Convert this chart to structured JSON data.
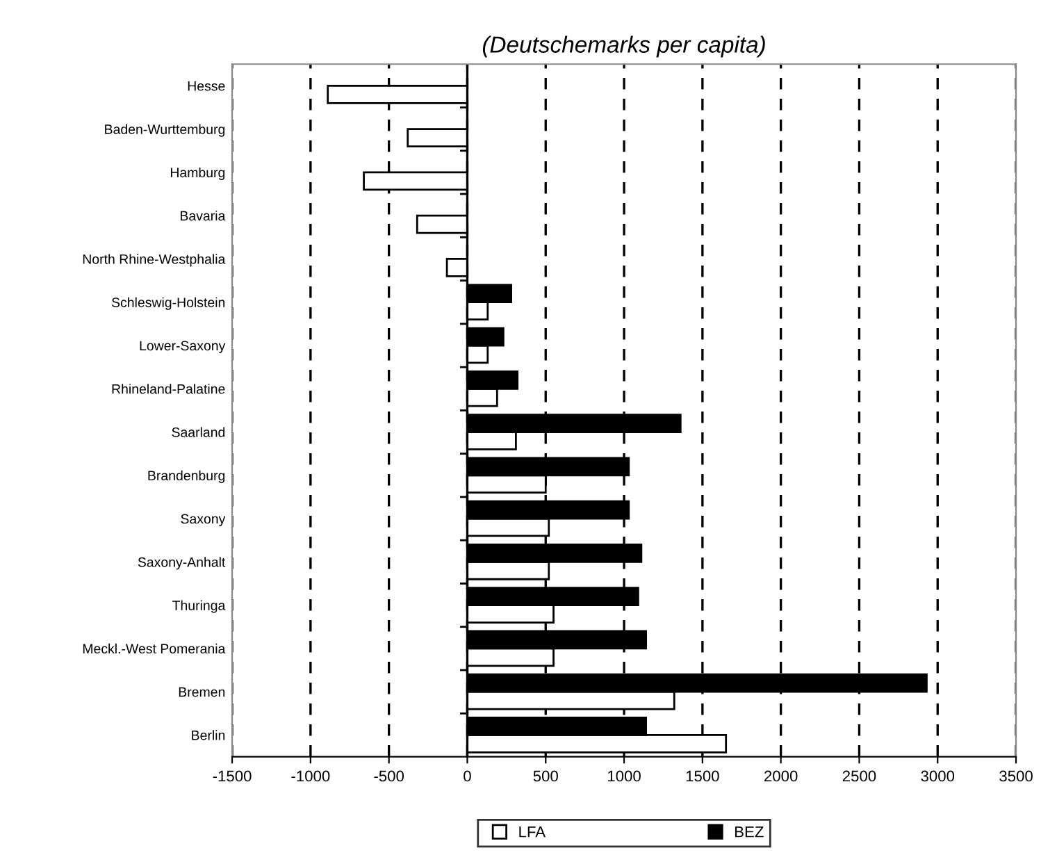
{
  "chart_data": {
    "type": "bar",
    "orientation": "horizontal",
    "title": "(Deutschemarks per capita)",
    "categories": [
      "Hesse",
      "Baden-Wurttemburg",
      "Hamburg",
      "Bavaria",
      "North Rhine-Westphalia",
      "Schleswig-Holstein",
      "Lower-Saxony",
      "Rhineland-Palatine",
      "Saarland",
      "Brandenburg",
      "Saxony",
      "Saxony-Anhalt",
      "Thuringa",
      "Meckl.-West Pomerania",
      "Bremen",
      "Berlin"
    ],
    "series": [
      {
        "name": "LFA",
        "color": "#ffffff",
        "values": [
          -890,
          -380,
          -660,
          -320,
          -130,
          130,
          130,
          190,
          310,
          500,
          520,
          520,
          550,
          550,
          1320,
          1650
        ]
      },
      {
        "name": "BEZ",
        "color": "#000000",
        "values": [
          null,
          null,
          null,
          null,
          null,
          280,
          230,
          320,
          1360,
          1030,
          1030,
          1110,
          1090,
          1140,
          2930,
          1140
        ]
      }
    ],
    "xlim": [
      -1500,
      3500
    ],
    "xticks": [
      -1500,
      -1000,
      -500,
      0,
      500,
      1000,
      1500,
      2000,
      2500,
      3000,
      3500
    ],
    "grid": "x",
    "legend": "bottom",
    "marker": "square"
  }
}
